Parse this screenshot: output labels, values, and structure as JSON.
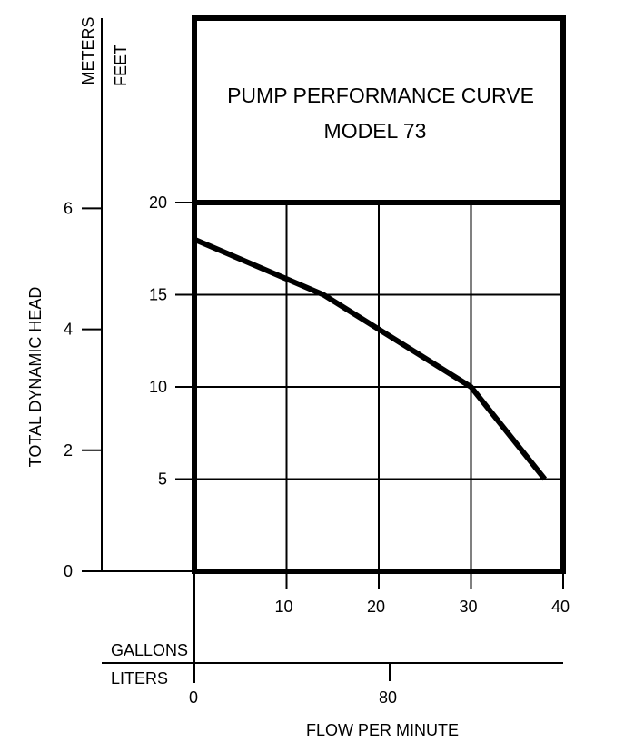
{
  "chart_data": {
    "type": "line",
    "title": "PUMP PERFORMANCE CURVE",
    "subtitle": "MODEL 73",
    "ylabel": "TOTAL DYNAMIC HEAD",
    "xlabel": "FLOW PER MINUTE",
    "y_units": {
      "left": "METERS",
      "right": "FEET"
    },
    "x_units": {
      "top": "GALLONS",
      "bottom": "LITERS"
    },
    "x_ticks_gallons": [
      "10",
      "20",
      "30",
      "40"
    ],
    "x_ticks_liters": [
      "0",
      "80"
    ],
    "y_ticks_feet": [
      "20",
      "15",
      "10",
      "5"
    ],
    "y_ticks_meters": [
      "6",
      "4",
      "2",
      "0"
    ],
    "xlim": [
      0,
      40
    ],
    "ylim": [
      0,
      20
    ],
    "grid": true,
    "series": [
      {
        "x": [
          0,
          14,
          30,
          38
        ],
        "y": [
          18,
          15,
          10,
          5
        ]
      }
    ]
  }
}
